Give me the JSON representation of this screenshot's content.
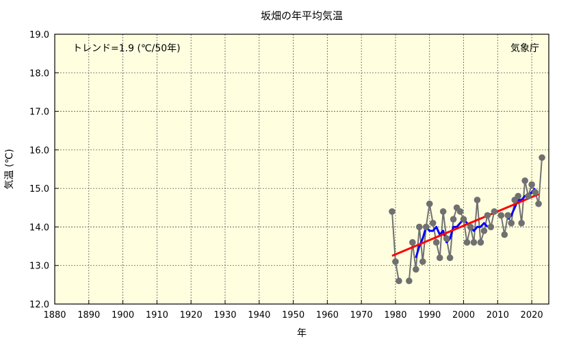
{
  "chart_data": {
    "type": "line",
    "title": "坂畑の年平均気温",
    "xlabel": "年",
    "ylabel": "気温 (℃)",
    "trend_label": "トレンド=1.9 (℃/50年)",
    "source_label": "気象庁",
    "xlim": [
      1880,
      2025
    ],
    "ylim": [
      12.0,
      19.0
    ],
    "x_ticks": [
      1880,
      1890,
      1900,
      1910,
      1920,
      1930,
      1940,
      1950,
      1960,
      1970,
      1980,
      1990,
      2000,
      2010,
      2020
    ],
    "y_ticks": [
      "12.0",
      "13.0",
      "14.0",
      "15.0",
      "16.0",
      "17.0",
      "18.0",
      "19.0"
    ],
    "grid": true,
    "colors": {
      "background": "#ffffe0",
      "annual": "#707070",
      "moving_average": "#0000ff",
      "trend": "#ff0000"
    },
    "series": [
      {
        "values": [
          [
            1979,
            14.4
          ],
          [
            1980,
            13.1
          ],
          [
            1981,
            12.6
          ],
          [
            1984,
            12.6
          ],
          [
            1985,
            13.6
          ],
          [
            1986,
            12.9
          ],
          [
            1987,
            14.0
          ],
          [
            1988,
            13.1
          ],
          [
            1989,
            14.0
          ],
          [
            1990,
            14.6
          ],
          [
            1991,
            14.1
          ],
          [
            1992,
            13.6
          ],
          [
            1993,
            13.2
          ],
          [
            1994,
            14.4
          ],
          [
            1995,
            13.7
          ],
          [
            1996,
            13.2
          ],
          [
            1997,
            14.2
          ],
          [
            1998,
            14.5
          ],
          [
            1999,
            14.4
          ],
          [
            2000,
            14.2
          ],
          [
            2001,
            13.6
          ],
          [
            2002,
            14.0
          ],
          [
            2003,
            13.6
          ],
          [
            2004,
            14.7
          ],
          [
            2005,
            13.6
          ],
          [
            2006,
            13.9
          ],
          [
            2007,
            14.3
          ],
          [
            2008,
            14.0
          ],
          [
            2009,
            14.4
          ],
          [
            2011,
            14.3
          ],
          [
            2012,
            13.8
          ],
          [
            2013,
            14.3
          ],
          [
            2014,
            14.1
          ],
          [
            2015,
            14.7
          ],
          [
            2016,
            14.8
          ],
          [
            2017,
            14.1
          ],
          [
            2018,
            15.2
          ],
          [
            2019,
            14.8
          ],
          [
            2020,
            15.1
          ],
          [
            2021,
            14.9
          ],
          [
            2022,
            14.6
          ],
          [
            2023,
            15.8
          ]
        ]
      },
      {
        "values": [
          [
            1986,
            13.2
          ],
          [
            1987,
            13.5
          ],
          [
            1988,
            13.7
          ],
          [
            1989,
            14.0
          ],
          [
            1990,
            13.9
          ],
          [
            1991,
            13.9
          ],
          [
            1992,
            14.0
          ],
          [
            1993,
            13.8
          ],
          [
            1994,
            13.9
          ],
          [
            1995,
            13.6
          ],
          [
            1996,
            13.7
          ],
          [
            1997,
            14.0
          ],
          [
            1998,
            14.0
          ],
          [
            1999,
            14.1
          ],
          [
            2000,
            14.2
          ],
          [
            2001,
            14.1
          ],
          [
            2002,
            14.0
          ],
          [
            2003,
            13.9
          ],
          [
            2004,
            14.0
          ],
          [
            2005,
            14.0
          ],
          [
            2006,
            14.1
          ],
          [
            2007,
            14.0
          ],
          [
            2013,
            14.2
          ],
          [
            2014,
            14.3
          ],
          [
            2015,
            14.5
          ],
          [
            2016,
            14.7
          ],
          [
            2017,
            14.7
          ],
          [
            2018,
            14.8
          ],
          [
            2019,
            14.8
          ],
          [
            2020,
            14.9
          ],
          [
            2021,
            15.0
          ]
        ]
      },
      {
        "values": [
          [
            1979,
            13.25
          ],
          [
            2022,
            14.85
          ]
        ]
      }
    ]
  }
}
